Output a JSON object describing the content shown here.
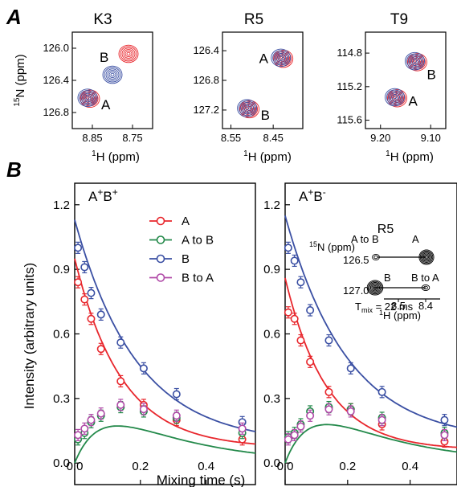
{
  "panel_letters": {
    "a": "A",
    "b": "B"
  },
  "colors": {
    "A": "#e8262c",
    "A_to_B": "#23894a",
    "B": "#3a4fa3",
    "B_to_A": "#b04aa8",
    "contour_red": "#e8262c",
    "contour_blue": "#3a4fa3"
  },
  "nmr_common": {
    "x_title": "1H (ppm)",
    "y_title": "15N (ppm)"
  },
  "chart_data": [
    {
      "type": "contour",
      "title": "K3",
      "xlabel": "1H (ppm)",
      "ylabel": "15N (ppm)",
      "x_reversed": true,
      "y_reversed": true,
      "xlim": [
        8.9,
        8.7
      ],
      "ylim": [
        125.8,
        127.0
      ],
      "xticks": [
        "8.85",
        "8.75"
      ],
      "yticks": [
        "126.0",
        "126.4",
        "126.8"
      ],
      "peaks": [
        {
          "label": "A",
          "x": 8.86,
          "y": 126.62,
          "colors": [
            "red",
            "blue"
          ]
        },
        {
          "label": "B",
          "x": 8.8,
          "y": 126.33,
          "colors": [
            "blue"
          ]
        },
        {
          "label": "",
          "x": 8.76,
          "y": 126.07,
          "colors": [
            "red"
          ]
        }
      ]
    },
    {
      "type": "contour",
      "title": "R5",
      "xlabel": "1H (ppm)",
      "ylabel": "",
      "x_reversed": true,
      "y_reversed": true,
      "xlim": [
        8.57,
        8.38
      ],
      "ylim": [
        126.15,
        127.45
      ],
      "xticks": [
        "8.55",
        "8.45"
      ],
      "yticks": [
        "126.4",
        "126.8",
        "127.2"
      ],
      "peaks": [
        {
          "label": "A",
          "x": 8.43,
          "y": 126.5,
          "colors": [
            "red",
            "blue"
          ]
        },
        {
          "label": "B",
          "x": 8.51,
          "y": 127.18,
          "colors": [
            "red",
            "blue"
          ]
        }
      ]
    },
    {
      "type": "contour",
      "title": "T9",
      "xlabel": "1H (ppm)",
      "ylabel": "",
      "x_reversed": true,
      "y_reversed": true,
      "xlim": [
        9.23,
        9.07
      ],
      "ylim": [
        114.55,
        115.7
      ],
      "xticks": [
        "9.20",
        "9.10"
      ],
      "yticks": [
        "114.8",
        "115.2",
        "115.6"
      ],
      "peaks": [
        {
          "label": "A",
          "x": 9.17,
          "y": 115.33,
          "colors": [
            "red",
            "blue"
          ]
        },
        {
          "label": "B",
          "x": 9.13,
          "y": 114.9,
          "colors": [
            "red",
            "blue"
          ]
        }
      ]
    },
    {
      "type": "scatter",
      "condition": "A+B+",
      "xlabel": "Mixing time (s)",
      "ylabel": "Intensity (arbitrary units)",
      "xlim": [
        0,
        0.55
      ],
      "ylim": [
        -0.1,
        1.3
      ],
      "xticks": [
        "0.0",
        "0.2",
        "0.4"
      ],
      "yticks": [
        "0.0",
        "0.3",
        "0.6",
        "0.9",
        "1.2"
      ],
      "legend_position": "top-center",
      "series": [
        {
          "name": "A",
          "color_key": "A",
          "x": [
            0.01,
            0.03,
            0.05,
            0.08,
            0.14,
            0.21,
            0.31,
            0.51
          ],
          "y": [
            0.84,
            0.76,
            0.67,
            0.53,
            0.38,
            0.27,
            0.2,
            0.11
          ]
        },
        {
          "name": "A to B",
          "color_key": "A_to_B",
          "x": [
            0.01,
            0.03,
            0.05,
            0.08,
            0.14,
            0.21,
            0.31,
            0.51
          ],
          "y": [
            0.11,
            0.14,
            0.19,
            0.22,
            0.26,
            0.24,
            0.21,
            0.14
          ]
        },
        {
          "name": "B",
          "color_key": "B",
          "x": [
            0.01,
            0.03,
            0.05,
            0.08,
            0.14,
            0.21,
            0.31,
            0.51
          ],
          "y": [
            1.0,
            0.91,
            0.79,
            0.69,
            0.56,
            0.44,
            0.32,
            0.19
          ]
        },
        {
          "name": "B to A",
          "color_key": "B_to_A",
          "x": [
            0.01,
            0.03,
            0.05,
            0.08,
            0.14,
            0.21,
            0.31,
            0.51
          ],
          "y": [
            0.13,
            0.16,
            0.2,
            0.23,
            0.27,
            0.25,
            0.22,
            0.16
          ]
        }
      ]
    },
    {
      "type": "scatter",
      "condition": "A+B-",
      "xlabel": "",
      "ylabel": "",
      "xlim": [
        0,
        0.55
      ],
      "ylim": [
        -0.1,
        1.3
      ],
      "xticks": [
        "0.0",
        "0.2",
        "0.4"
      ],
      "yticks": [
        "0.0",
        "0.3",
        "0.6",
        "0.9",
        "1.2"
      ],
      "series": [
        {
          "name": "A",
          "color_key": "A",
          "x": [
            0.01,
            0.03,
            0.05,
            0.08,
            0.14,
            0.21,
            0.31,
            0.51
          ],
          "y": [
            0.7,
            0.67,
            0.57,
            0.47,
            0.33,
            0.25,
            0.18,
            0.1
          ]
        },
        {
          "name": "A to B",
          "color_key": "A_to_B",
          "x": [
            0.01,
            0.03,
            0.05,
            0.08,
            0.14,
            0.21,
            0.31,
            0.51
          ],
          "y": [
            0.12,
            0.14,
            0.18,
            0.24,
            0.26,
            0.25,
            0.21,
            0.14
          ]
        },
        {
          "name": "B",
          "color_key": "B",
          "x": [
            0.01,
            0.03,
            0.05,
            0.08,
            0.14,
            0.21,
            0.31,
            0.51
          ],
          "y": [
            1.0,
            0.94,
            0.84,
            0.71,
            0.57,
            0.44,
            0.33,
            0.2
          ]
        },
        {
          "name": "B to A",
          "color_key": "B_to_A",
          "x": [
            0.01,
            0.03,
            0.05,
            0.08,
            0.14,
            0.21,
            0.31,
            0.51
          ],
          "y": [
            0.11,
            0.13,
            0.17,
            0.22,
            0.25,
            0.24,
            0.2,
            0.13
          ]
        }
      ]
    }
  ],
  "fit_curves": [
    {
      "A": {
        "start": 0.95,
        "amp": 0.92,
        "k": 7.0,
        "base": 0.07
      },
      "B": {
        "start": 1.13,
        "amp": 1.07,
        "k": 5.3,
        "base": 0.09
      },
      "AtoB": {
        "k1": 13.0,
        "k2": 4.0,
        "amp": 0.42
      },
      "BtoA": {
        "k1": 13.0,
        "k2": 4.0,
        "amp": 0.42
      }
    },
    {
      "A": {
        "start": 0.86,
        "amp": 0.82,
        "k": 7.5,
        "base": 0.06
      },
      "B": {
        "start": 1.15,
        "amp": 1.07,
        "k": 5.0,
        "base": 0.1
      },
      "AtoB": {
        "k1": 13.0,
        "k2": 3.8,
        "amp": 0.42
      },
      "BtoA": {
        "k1": 13.0,
        "k2": 3.8,
        "amp": 0.4
      }
    }
  ],
  "inset": {
    "title": "R5",
    "y_axis_label": "15N (ppm)",
    "yticks": [
      "126.5",
      "127.0"
    ],
    "xticks": [
      "8.5",
      "8.4"
    ],
    "x_label": "1H (ppm)",
    "peak_labels": {
      "a_to_b": "A to B",
      "a": "A",
      "b": "B",
      "b_to_a": "B to A"
    },
    "tmix": "Tmix = 22 ms"
  }
}
